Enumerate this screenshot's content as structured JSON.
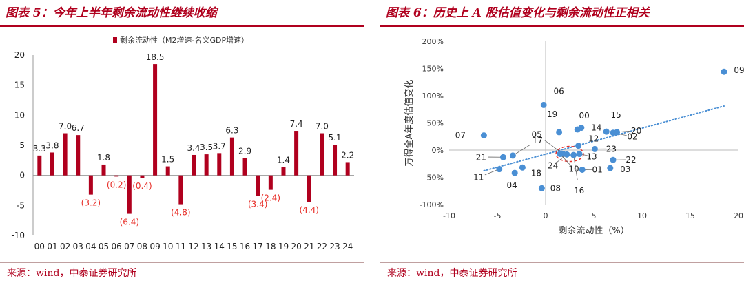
{
  "left": {
    "title": "图表 5：今年上半年剩余流动性继续收缩",
    "source": "来源：wind，中泰证券研究所"
  },
  "right": {
    "title": "图表 6：历史上 A 股估值变化与剩余流动性正相关",
    "source": "来源：wind，中泰证券研究所"
  },
  "chart_data": [
    {
      "type": "bar",
      "legend": "剩余流动性（M2增速-名义GDP增速）",
      "legend_position": "top-center",
      "categories": [
        "00",
        "01",
        "02",
        "03",
        "04",
        "05",
        "06",
        "07",
        "08",
        "09",
        "10",
        "11",
        "12",
        "13",
        "14",
        "15",
        "16",
        "17",
        "18",
        "19",
        "20",
        "21",
        "22",
        "23",
        "24"
      ],
      "values": [
        3.3,
        3.8,
        7.0,
        6.7,
        -3.2,
        1.8,
        -0.2,
        -6.4,
        -0.4,
        18.5,
        1.5,
        -4.8,
        3.4,
        3.5,
        3.7,
        6.3,
        2.9,
        -3.4,
        -2.4,
        1.4,
        7.4,
        -4.4,
        7.0,
        5.1,
        2.2
      ],
      "data_labels": [
        "3.3",
        "3.8",
        "7.0",
        "6.7",
        "(3.2)",
        "1.8",
        "(0.2)",
        "(6.4)",
        "(0.4)",
        "18.5",
        "1.5",
        "(4.8)",
        "3.4",
        "3.5",
        "3.7",
        "6.3",
        "2.9",
        "(3.4)",
        "(2.4)",
        "1.4",
        "7.4",
        "(4.4)",
        "7.0",
        "5.1",
        "2.2"
      ],
      "show_labels": [
        true,
        true,
        true,
        true,
        true,
        true,
        true,
        true,
        true,
        true,
        true,
        true,
        true,
        true,
        true,
        true,
        true,
        true,
        true,
        true,
        true,
        true,
        true,
        true,
        true
      ],
      "ylim": [
        -10,
        20
      ],
      "yticks": [
        "-10",
        "-5",
        "0",
        "5",
        "10",
        "15",
        "20"
      ],
      "grid": false,
      "colors": {
        "bar": "#b0001e",
        "negative_label": "#e8302a",
        "positive_label": "#222222"
      }
    },
    {
      "type": "scatter",
      "xlabel": "剩余流动性（%）",
      "ylabel": "万得全A年度估值变化",
      "xlim": [
        -10,
        20
      ],
      "ylim": [
        -100,
        200
      ],
      "xticks": [
        "-10",
        "-5",
        "0",
        "5",
        "10",
        "15",
        "20"
      ],
      "yticks": [
        "-100%",
        "-50%",
        "0%",
        "50%",
        "100%",
        "150%",
        "200%"
      ],
      "points": [
        {
          "label": "00",
          "x": 3.3,
          "y": 38
        },
        {
          "label": "01",
          "x": 3.8,
          "y": -36
        },
        {
          "label": "02",
          "x": 7.0,
          "y": 32
        },
        {
          "label": "03",
          "x": 6.7,
          "y": -33
        },
        {
          "label": "04",
          "x": -3.2,
          "y": -42
        },
        {
          "label": "05",
          "x": 1.8,
          "y": -7
        },
        {
          "label": "06",
          "x": -0.2,
          "y": 83
        },
        {
          "label": "07",
          "x": -6.4,
          "y": 27
        },
        {
          "label": "08",
          "x": -0.4,
          "y": -70
        },
        {
          "label": "09",
          "x": 18.5,
          "y": 144
        },
        {
          "label": "10",
          "x": 1.5,
          "y": -7
        },
        {
          "label": "11",
          "x": -4.8,
          "y": -35
        },
        {
          "label": "12",
          "x": 3.4,
          "y": 8
        },
        {
          "label": "13",
          "x": 3.5,
          "y": -7
        },
        {
          "label": "14",
          "x": 3.7,
          "y": 41
        },
        {
          "label": "15",
          "x": 6.3,
          "y": 34
        },
        {
          "label": "16",
          "x": 2.9,
          "y": -9
        },
        {
          "label": "17",
          "x": -3.4,
          "y": -10
        },
        {
          "label": "18",
          "x": -2.4,
          "y": -32
        },
        {
          "label": "19",
          "x": 1.4,
          "y": 33
        },
        {
          "label": "20",
          "x": 7.4,
          "y": 33
        },
        {
          "label": "21",
          "x": -4.4,
          "y": -13
        },
        {
          "label": "22",
          "x": 7.0,
          "y": -18
        },
        {
          "label": "23",
          "x": 5.1,
          "y": 2
        },
        {
          "label": "24",
          "x": 2.2,
          "y": -8
        }
      ],
      "trendline": {
        "style": "dotted",
        "from": [
          -6.4,
          -38
        ],
        "to": [
          18.5,
          81
        ]
      },
      "highlight_ellipse_center": [
        2.5,
        -7
      ],
      "colors": {
        "point": "#4a8fd4",
        "trend": "#4a8fd4",
        "highlight": "#e8302a"
      }
    }
  ]
}
